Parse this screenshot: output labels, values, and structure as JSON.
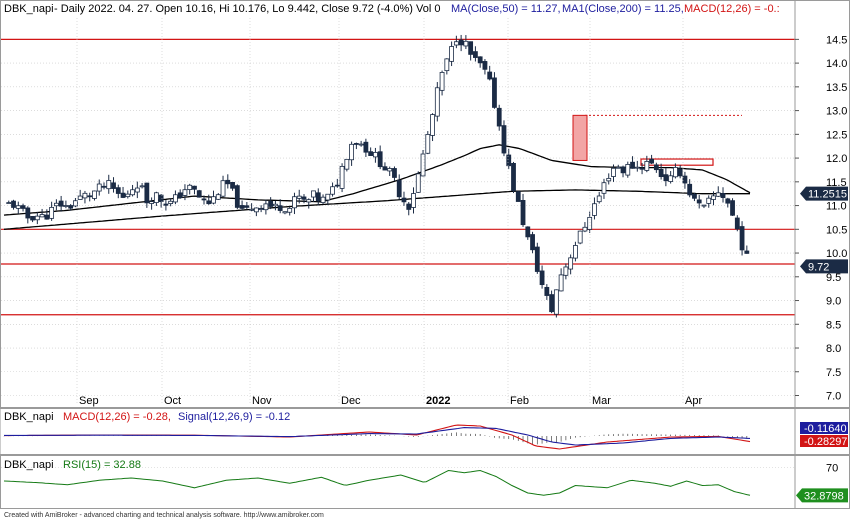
{
  "header": {
    "ticker": "DBK_napi",
    "info": " - Daily 2022. 04. 27. Open 10.16, Hi 10.176, Lo 9.442, Close 9.72 (-4.0%) Vol 0",
    "ma50": "MA(Close,50) = 11.27,",
    "ma200": "MA1(Close,200) = 11.25,",
    "macd": "MACD(12,26) = -0.:"
  },
  "macd_header": {
    "ticker": "DBK_napi",
    "macd": "MACD(12,26) = -0.28,",
    "signal": "Signal(12,26,9) = -0.12"
  },
  "rsi_header": {
    "ticker": "DBK_napi",
    "rsi": "RSI(15) = 32.88"
  },
  "footer": "Created with AmiBroker - advanced charting and technical analysis software. http://www.amibroker.com",
  "colors": {
    "up": "#ffffff",
    "down": "#1b2b45",
    "ma": "#000000",
    "hline": "#d21414",
    "macd": "#d21414",
    "signal": "#1d1d9e",
    "rsi": "#157a15",
    "grid": "#c8c8c8"
  },
  "chart_data": [
    {
      "type": "candlestick",
      "title": "DBK_napi - Daily",
      "x_labels": [
        "Sep",
        "Oct",
        "Nov",
        "Dec",
        "2022",
        "Feb",
        "Mar",
        "Apr"
      ],
      "y_ticks": [
        7.0,
        7.5,
        8.0,
        8.5,
        9.0,
        9.5,
        10.0,
        10.5,
        11.0,
        11.5,
        12.0,
        12.5,
        13.0,
        13.5,
        14.0,
        14.5
      ],
      "ylim": [
        6.8,
        14.95
      ],
      "grid": true,
      "horizontal_levels": [
        14.5,
        10.5,
        9.77,
        8.7
      ],
      "dotted_level": 12.9,
      "resistance_box": [
        11.85,
        11.98
      ],
      "highlight_box": [
        11.95,
        12.9
      ],
      "close_trend": [
        [
          0,
          11.0
        ],
        [
          5,
          11.05
        ],
        [
          10,
          10.9
        ],
        [
          15,
          10.75
        ],
        [
          20,
          10.8
        ],
        [
          25,
          10.75
        ],
        [
          30,
          10.9
        ],
        [
          35,
          11.05
        ],
        [
          40,
          10.95
        ],
        [
          45,
          11.1
        ],
        [
          50,
          11.2
        ],
        [
          55,
          11.25
        ],
        [
          60,
          11.35
        ],
        [
          65,
          11.45
        ],
        [
          70,
          11.3
        ],
        [
          75,
          11.15
        ],
        [
          80,
          11.35
        ],
        [
          85,
          11.5
        ],
        [
          90,
          11.1
        ],
        [
          95,
          11.25
        ],
        [
          100,
          11.1
        ],
        [
          105,
          11.05
        ],
        [
          110,
          11.2
        ],
        [
          115,
          11.4
        ],
        [
          120,
          11.3
        ],
        [
          125,
          11.1
        ],
        [
          130,
          11.05
        ],
        [
          135,
          11.3
        ],
        [
          140,
          11.5
        ],
        [
          145,
          11.2
        ],
        [
          150,
          10.85
        ],
        [
          155,
          10.95
        ],
        [
          160,
          11.0
        ],
        [
          165,
          11.05
        ],
        [
          170,
          10.95
        ],
        [
          175,
          11.0
        ],
        [
          180,
          10.95
        ],
        [
          185,
          11.2
        ],
        [
          190,
          11.05
        ],
        [
          195,
          11.2
        ],
        [
          200,
          11.1
        ],
        [
          205,
          11.2
        ],
        [
          210,
          11.5
        ],
        [
          215,
          12.0
        ],
        [
          220,
          12.4
        ],
        [
          225,
          12.3
        ],
        [
          230,
          12.15
        ],
        [
          235,
          12.0
        ],
        [
          240,
          11.8
        ],
        [
          245,
          11.6
        ],
        [
          250,
          11.2
        ],
        [
          255,
          11.0
        ],
        [
          260,
          11.5
        ],
        [
          265,
          12.2
        ],
        [
          270,
          12.9
        ],
        [
          275,
          13.7
        ],
        [
          280,
          14.1
        ],
        [
          285,
          14.55
        ],
        [
          290,
          14.45
        ],
        [
          295,
          14.1
        ],
        [
          300,
          13.95
        ],
        [
          305,
          13.7
        ],
        [
          310,
          13.0
        ],
        [
          315,
          12.2
        ],
        [
          320,
          11.5
        ],
        [
          325,
          10.9
        ],
        [
          330,
          10.3
        ],
        [
          335,
          9.8
        ],
        [
          340,
          9.2
        ],
        [
          345,
          8.8
        ],
        [
          350,
          9.5
        ],
        [
          355,
          9.8
        ],
        [
          360,
          10.2
        ],
        [
          365,
          10.5
        ],
        [
          370,
          10.9
        ],
        [
          375,
          11.2
        ],
        [
          380,
          11.6
        ],
        [
          385,
          11.85
        ],
        [
          390,
          11.75
        ],
        [
          395,
          11.85
        ],
        [
          400,
          11.8
        ],
        [
          405,
          11.9
        ],
        [
          410,
          11.85
        ],
        [
          415,
          11.6
        ],
        [
          420,
          11.55
        ],
        [
          425,
          11.8
        ],
        [
          430,
          11.4
        ],
        [
          435,
          11.1
        ],
        [
          440,
          10.9
        ],
        [
          445,
          11.1
        ],
        [
          450,
          11.3
        ],
        [
          455,
          11.15
        ],
        [
          460,
          10.7
        ],
        [
          463,
          10.4
        ],
        [
          466,
          10.05
        ],
        [
          470,
          9.72
        ]
      ],
      "ma50_trend": [
        [
          0,
          10.8
        ],
        [
          40,
          10.9
        ],
        [
          80,
          11.05
        ],
        [
          120,
          11.2
        ],
        [
          160,
          11.12
        ],
        [
          200,
          11.08
        ],
        [
          220,
          11.25
        ],
        [
          250,
          11.55
        ],
        [
          275,
          11.85
        ],
        [
          290,
          12.05
        ],
        [
          300,
          12.2
        ],
        [
          312,
          12.28
        ],
        [
          325,
          12.2
        ],
        [
          345,
          11.95
        ],
        [
          370,
          11.82
        ],
        [
          395,
          11.8
        ],
        [
          420,
          11.8
        ],
        [
          440,
          11.75
        ],
        [
          455,
          11.55
        ],
        [
          470,
          11.27
        ]
      ],
      "ma200_trend": [
        [
          0,
          10.5
        ],
        [
          100,
          10.78
        ],
        [
          180,
          10.98
        ],
        [
          240,
          11.1
        ],
        [
          280,
          11.2
        ],
        [
          320,
          11.3
        ],
        [
          360,
          11.33
        ],
        [
          400,
          11.3
        ],
        [
          440,
          11.25
        ],
        [
          470,
          11.25
        ]
      ],
      "last_labels": [
        "11.2515",
        "9.72"
      ]
    },
    {
      "type": "line",
      "title": "MACD(12,26) = -0.28, Signal(12,26,9) = -0.12",
      "series": [
        {
          "name": "MACD(12,26)",
          "trend": [
            [
              0,
              0.02
            ],
            [
              60,
              0.05
            ],
            [
              120,
              0.04
            ],
            [
              180,
              -0.05
            ],
            [
              230,
              0.2
            ],
            [
              260,
              0.05
            ],
            [
              285,
              0.55
            ],
            [
              300,
              0.5
            ],
            [
              320,
              0.05
            ],
            [
              335,
              -0.5
            ],
            [
              350,
              -0.65
            ],
            [
              380,
              -0.3
            ],
            [
              420,
              -0.05
            ],
            [
              450,
              -0.02
            ],
            [
              470,
              -0.28
            ]
          ]
        },
        {
          "name": "Signal(12,26,9)",
          "trend": [
            [
              0,
              0.03
            ],
            [
              60,
              0.04
            ],
            [
              120,
              0.03
            ],
            [
              180,
              -0.03
            ],
            [
              230,
              0.12
            ],
            [
              260,
              0.1
            ],
            [
              290,
              0.42
            ],
            [
              310,
              0.38
            ],
            [
              330,
              0.05
            ],
            [
              345,
              -0.3
            ],
            [
              360,
              -0.45
            ],
            [
              390,
              -0.35
            ],
            [
              420,
              -0.12
            ],
            [
              450,
              -0.05
            ],
            [
              470,
              -0.12
            ]
          ]
        }
      ],
      "last_labels": [
        "-0.11640",
        "-0.28297"
      ]
    },
    {
      "type": "line",
      "title": "RSI(15) = 32.88",
      "y_ticks": [
        70
      ],
      "series": [
        {
          "name": "RSI(15)",
          "trend": [
            [
              0,
              52
            ],
            [
              20,
              50
            ],
            [
              40,
              47
            ],
            [
              60,
              53
            ],
            [
              80,
              56
            ],
            [
              100,
              52
            ],
            [
              120,
              43
            ],
            [
              140,
              53
            ],
            [
              160,
              56
            ],
            [
              180,
              49
            ],
            [
              200,
              57
            ],
            [
              215,
              46
            ],
            [
              230,
              53
            ],
            [
              250,
              60
            ],
            [
              265,
              50
            ],
            [
              280,
              66
            ],
            [
              290,
              63
            ],
            [
              300,
              66
            ],
            [
              310,
              58
            ],
            [
              320,
              46
            ],
            [
              330,
              36
            ],
            [
              340,
              33
            ],
            [
              350,
              36
            ],
            [
              360,
              46
            ],
            [
              380,
              43
            ],
            [
              395,
              53
            ],
            [
              410,
              49
            ],
            [
              420,
              45
            ],
            [
              430,
              52
            ],
            [
              440,
              46
            ],
            [
              450,
              47
            ],
            [
              460,
              38
            ],
            [
              470,
              32.88
            ]
          ]
        }
      ],
      "last_labels": [
        "32.8798"
      ]
    }
  ]
}
